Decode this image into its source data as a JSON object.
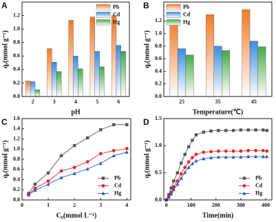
{
  "chart_data": [
    {
      "type": "bar",
      "label": "A",
      "xlabel": "pH",
      "ylabel": "qₑ(mmol g⁻¹)",
      "legend": "upper right",
      "categories": [
        "2",
        "3",
        "4",
        "5",
        "6"
      ],
      "series": [
        {
          "name": "Pb",
          "color": "#f07a2a",
          "values": [
            0.23,
            0.71,
            1.13,
            1.18,
            1.2
          ]
        },
        {
          "name": "Cd",
          "color": "#3a8ee0",
          "values": [
            0.22,
            0.51,
            0.6,
            0.67,
            0.76
          ]
        },
        {
          "name": "Hg",
          "color": "#45a845",
          "values": [
            0.1,
            0.37,
            0.41,
            0.44,
            0.67
          ]
        }
      ],
      "ylim": [
        0,
        1.4
      ],
      "yticks": [
        {
          "value": 0,
          "label": "0.0"
        },
        0.2,
        0.4,
        0.6,
        0.8,
        {
          "value": 1,
          "label": "1.0"
        },
        1.2
      ]
    },
    {
      "type": "bar",
      "label": "B",
      "xlabel": "Temperature(℃)",
      "ylabel": "qₑ(mmol g⁻¹)",
      "legend": "upper left",
      "categories": [
        "25",
        "35",
        "45"
      ],
      "series": [
        {
          "name": "Pb",
          "color": "#f07a2a",
          "values": [
            1.2,
            1.3,
            1.38
          ]
        },
        {
          "name": "Cd",
          "color": "#3a8ee0",
          "values": [
            0.76,
            0.8,
            0.88
          ]
        },
        {
          "name": "Hg",
          "color": "#45a845",
          "values": [
            0.66,
            0.73,
            0.79
          ]
        }
      ],
      "ylim": [
        0,
        1.5
      ],
      "yticks": [
        {
          "value": 0,
          "label": "0.0"
        },
        0.2,
        0.4,
        0.6,
        0.8,
        {
          "value": 1,
          "label": "1.0"
        },
        1.2
      ]
    },
    {
      "type": "line",
      "label": "C",
      "xlabel": "C₀(mmol L⁻¹)",
      "ylabel": "qₑ(mmol g⁻¹)",
      "legend": "lower right",
      "x": [
        0.25,
        0.5,
        1,
        1.5,
        2,
        2.5,
        3,
        3.5,
        4
      ],
      "series": [
        {
          "name": "Pb",
          "color": "#555555",
          "marker": "square",
          "values": [
            0.13,
            0.31,
            0.53,
            0.87,
            1.07,
            1.22,
            1.38,
            1.48,
            1.48
          ]
        },
        {
          "name": "Cd",
          "color": "#e8262a",
          "marker": "circle",
          "values": [
            0.11,
            0.23,
            0.37,
            0.57,
            0.64,
            0.75,
            0.91,
            0.97,
            1.01
          ]
        },
        {
          "name": "Hg",
          "color": "#2a52c8",
          "marker": "triangle",
          "values": [
            0.1,
            0.19,
            0.31,
            0.44,
            0.52,
            0.61,
            0.72,
            0.87,
            0.94
          ]
        }
      ],
      "xlim": [
        0,
        4.15
      ],
      "xticks": [
        0,
        1,
        2,
        3,
        4
      ],
      "ylim": [
        0,
        1.6
      ],
      "yticks": [
        {
          "value": 0,
          "label": "0.0"
        },
        0.2,
        0.4,
        0.6,
        0.8,
        {
          "value": 1,
          "label": "1.0"
        },
        1.2,
        1.4,
        1.6
      ]
    },
    {
      "type": "line",
      "label": "D",
      "xlabel": "Time(min)",
      "ylabel": "qₑ(mmol g⁻¹)",
      "legend": "lower right",
      "x": [
        0,
        10,
        20,
        30,
        45,
        60,
        75,
        90,
        105,
        120,
        150,
        180,
        210,
        240,
        270,
        300,
        330,
        360,
        390,
        405
      ],
      "series": [
        {
          "name": "Pb",
          "color": "#555555",
          "marker": "square",
          "values": [
            0,
            0.1,
            0.22,
            0.35,
            0.5,
            0.68,
            0.84,
            0.98,
            1.1,
            1.2,
            1.25,
            1.27,
            1.28,
            1.28,
            1.28,
            1.29,
            1.29,
            1.29,
            1.29,
            1.28
          ]
        },
        {
          "name": "Cd",
          "color": "#e8262a",
          "marker": "circle",
          "values": [
            0,
            0.06,
            0.14,
            0.24,
            0.35,
            0.48,
            0.6,
            0.7,
            0.78,
            0.84,
            0.88,
            0.89,
            0.9,
            0.9,
            0.9,
            0.9,
            0.91,
            0.91,
            0.91,
            0.9
          ]
        },
        {
          "name": "Hg",
          "color": "#2a52c8",
          "marker": "triangle",
          "values": [
            0,
            0.05,
            0.11,
            0.19,
            0.29,
            0.4,
            0.51,
            0.6,
            0.67,
            0.72,
            0.76,
            0.78,
            0.79,
            0.79,
            0.79,
            0.79,
            0.8,
            0.8,
            0.8,
            0.8
          ]
        }
      ],
      "xlim": [
        -10,
        425
      ],
      "xticks": [
        0,
        100,
        200,
        300,
        400
      ],
      "ylim": [
        0,
        1.5
      ],
      "yticks": [
        {
          "value": 0,
          "label": "0.0"
        },
        0.5,
        {
          "value": 1,
          "label": "1.0"
        },
        1.5
      ]
    }
  ]
}
